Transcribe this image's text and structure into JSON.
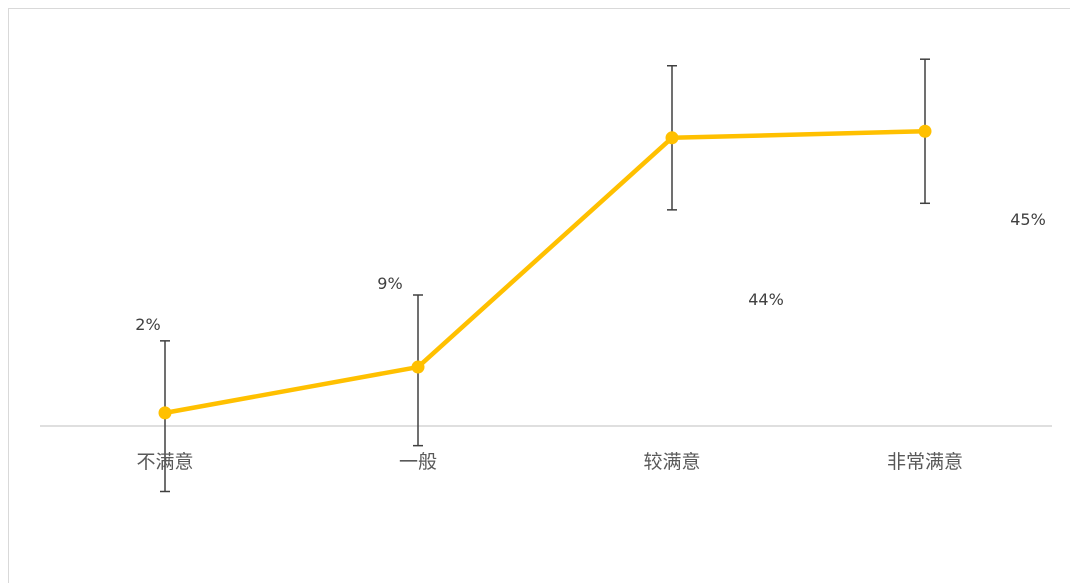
{
  "chart_data": {
    "type": "line",
    "categories": [
      "不满意",
      "一般",
      "较满意",
      "非常满意"
    ],
    "values": [
      2,
      9,
      44,
      45
    ],
    "data_labels": [
      "2%",
      "9%",
      "44%",
      "45%"
    ],
    "error_bars": [
      {
        "low": -10,
        "high": 13
      },
      {
        "low": -3,
        "high": 20
      },
      {
        "low": 33,
        "high": 55
      },
      {
        "low": 34,
        "high": 56
      }
    ],
    "ylim": [
      0,
      60
    ],
    "grid": false,
    "line_color": "#FFC000",
    "error_bar_color": "#404040",
    "axis_color": "#bfbfbf"
  }
}
